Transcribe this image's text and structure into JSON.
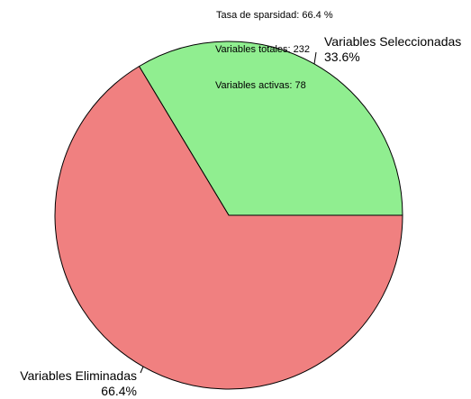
{
  "chart_data": {
    "type": "pie",
    "slices": [
      {
        "name": "Variables Seleccionadas",
        "percent_label": "33.6%",
        "value": 78,
        "color": "#90ee90"
      },
      {
        "name": "Variables Eliminadas",
        "percent_label": "66.4%",
        "value": 154,
        "color": "#f08080"
      }
    ],
    "annotations": {
      "sparsity": "Tasa de sparsidad: 66.4 %",
      "total": "Variables totales: 232",
      "active": "Variables activas: 78"
    },
    "title": "",
    "legend": "none",
    "start_angle_deg": 0,
    "direction": "counterclockwise"
  }
}
